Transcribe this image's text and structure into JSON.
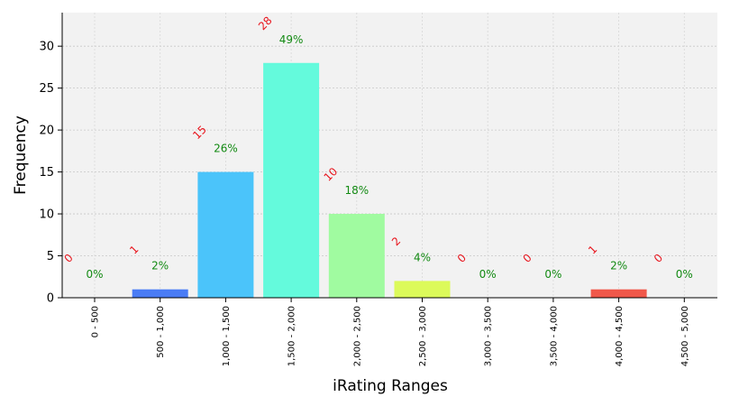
{
  "chart_data": {
    "type": "bar",
    "title": "",
    "xlabel": "iRating Ranges",
    "ylabel": "Frequency",
    "ylim": [
      0,
      34
    ],
    "yticks": [
      0,
      5,
      10,
      15,
      20,
      25,
      30
    ],
    "grid": true,
    "categories": [
      "0 - 500",
      "500 - 1,000",
      "1,000 - 1,500",
      "1,500 - 2,000",
      "2,000 - 2,500",
      "2,500 - 3,000",
      "3,000 - 3,500",
      "3,500 - 4,000",
      "4,000 - 4,500",
      "4,500 - 5,000"
    ],
    "values": [
      0,
      1,
      15,
      28,
      10,
      2,
      0,
      0,
      1,
      0
    ],
    "count_labels": [
      "0",
      "1",
      "15",
      "28",
      "10",
      "2",
      "0",
      "0",
      "1",
      "0"
    ],
    "percent_labels": [
      "0%",
      "2%",
      "26%",
      "49%",
      "18%",
      "4%",
      "0%",
      "0%",
      "2%",
      "0%"
    ],
    "colors": [
      "#6a5cf5",
      "#4a7cf5",
      "#4bc4fa",
      "#64fadc",
      "#a0fba0",
      "#dcfa5a",
      "#f5d44a",
      "#f59a40",
      "#f0584a",
      "#e83030"
    ],
    "background": "#f2f2f2",
    "count_color": "#e8141c",
    "percent_color": "#138a13"
  }
}
